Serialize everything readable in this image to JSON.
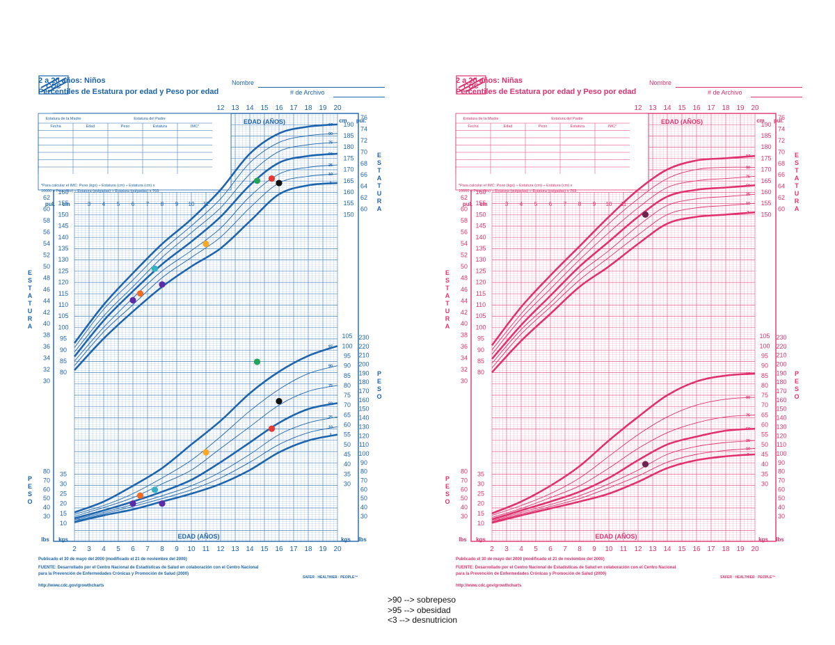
{
  "legend": {
    "lines": [
      ">90 --> sobrepeso",
      ">95 --> obesidad",
      "<3 --> desnutricion"
    ]
  },
  "labels": {
    "edad_anos": "EDAD (AÑOS)",
    "estatura_v": "ESTATURA",
    "peso_v": "PESO",
    "pul": "pul.",
    "cm": "cm",
    "lbs": "lbs",
    "kgs": "kgs",
    "table_madre": "Estatura de la Madre",
    "table_padre": "Estatura del Padre",
    "table_cols": [
      "Fecha",
      "Edad",
      "Peso",
      "Estatura",
      "IMC*"
    ],
    "imc_note_1": "*Para calcular el IMC: Peso (kgs) ÷ Estatura (cm) ÷ Estatura (cm) x",
    "imc_note_2": "10000 o Peso (lbs) ÷ Estatura (pulgadas) ÷ Estatura (pulgadas) x 703",
    "footer_1": "Publicado el 30 de mayo del 2000 (modificado el 21 de noviembre del 2000)",
    "footer_2": "FUENTE: Desarrollado por el Centro Nacional de Estadísticas de Salud en colaboración con el Centro Nacional para la Prevención de Enfermedades Crónicas y Promoción de Salud (2000)",
    "footer_3": "http://www.cdc.gov/growthcharts",
    "logo_text": "SAFER · HEALTHIER · PEOPLE™",
    "logo_mark": "CDC"
  },
  "charts": {
    "boys": {
      "title": "2 a 20 años: Niños",
      "subtitle": "Percentiles de Estatura por edad y Peso por edad",
      "nombre": "Nombre",
      "archivo": "# de Archivo",
      "color": "#1c64ad"
    },
    "girls": {
      "title": "2 a 20 años: Niñas",
      "subtitle": "Percentiles de Estatura por edad y Peso por edad",
      "nombre": "Nombre",
      "archivo": "# de Archivo",
      "color": "#e0316e"
    }
  },
  "chart_data": [
    {
      "type": "line",
      "title": "2 a 20 años: Niños — Percentiles de Estatura por edad y Peso por edad",
      "xlabel": "EDAD (AÑOS)",
      "ylabel": "ESTATURA / PESO",
      "xlim": [
        2,
        20
      ],
      "x_ticks": [
        2,
        3,
        4,
        5,
        6,
        7,
        8,
        9,
        10,
        11,
        12,
        13,
        14,
        15,
        16,
        17,
        18,
        19,
        20
      ],
      "x_ticks_top": [
        12,
        13,
        14,
        15,
        16,
        17,
        18,
        19,
        20
      ],
      "stature_cm_ticks_left": [
        80,
        85,
        90,
        95,
        100,
        105,
        110,
        115,
        120,
        125,
        130,
        135,
        140,
        145,
        150,
        155,
        160
      ],
      "stature_in_ticks_left": [
        30,
        32,
        34,
        36,
        38,
        40,
        42,
        44,
        46,
        48,
        50,
        52,
        54,
        56,
        58,
        60,
        62
      ],
      "stature_cm_ticks_right": [
        150,
        155,
        160,
        165,
        170,
        175,
        180,
        185,
        190
      ],
      "stature_in_ticks_right": [
        60,
        62,
        64,
        66,
        68,
        70,
        72,
        74,
        76
      ],
      "weight_kg_ticks_right": [
        30,
        35,
        40,
        45,
        50,
        55,
        60,
        65,
        70,
        75,
        80,
        85,
        90,
        95,
        100,
        105
      ],
      "weight_lb_ticks_right": [
        30,
        40,
        50,
        60,
        70,
        80,
        90,
        100,
        110,
        120,
        130,
        140,
        150,
        160,
        170,
        180,
        190,
        200,
        210,
        220,
        230
      ],
      "weight_kg_ticks_left": [
        10,
        15,
        20,
        25,
        30,
        35
      ],
      "weight_lb_ticks_left": [
        30,
        40,
        50,
        60,
        70,
        80
      ],
      "x": [
        2,
        4,
        6,
        8,
        10,
        12,
        14,
        16,
        18,
        20
      ],
      "stature_series": [
        {
          "name": "97",
          "values": [
            93,
            110,
            124,
            137,
            148,
            161,
            177,
            186,
            189,
            190
          ]
        },
        {
          "name": "90",
          "values": [
            91,
            108,
            121,
            134,
            145,
            157,
            173,
            182,
            185,
            186
          ]
        },
        {
          "name": "75",
          "values": [
            89,
            105,
            118,
            131,
            142,
            153,
            168,
            178,
            181,
            182
          ]
        },
        {
          "name": "50",
          "values": [
            87,
            103,
            116,
            128,
            138,
            149,
            163,
            173,
            176,
            177
          ]
        },
        {
          "name": "25",
          "values": [
            85,
            100,
            113,
            125,
            134,
            144,
            158,
            168,
            171,
            172
          ]
        },
        {
          "name": "10",
          "values": [
            83,
            98,
            110,
            122,
            131,
            140,
            153,
            164,
            167,
            168
          ]
        },
        {
          "name": "3",
          "values": [
            81,
            95,
            107,
            118,
            127,
            135,
            147,
            159,
            163,
            164
          ]
        }
      ],
      "weight_series": [
        {
          "name": "97",
          "values": [
            15.5,
            21,
            29,
            38,
            50,
            62,
            76,
            87,
            95,
            100
          ]
        },
        {
          "name": "90",
          "values": [
            14.5,
            19,
            25,
            33,
            42,
            54,
            67,
            78,
            86,
            90
          ]
        },
        {
          "name": "75",
          "values": [
            13.5,
            18,
            23,
            30,
            37,
            48,
            59,
            70,
            77,
            80
          ]
        },
        {
          "name": "50",
          "values": [
            12.5,
            16.5,
            21,
            26,
            32,
            41,
            51,
            61,
            68,
            71
          ]
        },
        {
          "name": "25",
          "values": [
            11.8,
            15.5,
            19.5,
            24,
            29,
            36,
            45,
            55,
            61,
            64
          ]
        },
        {
          "name": "10",
          "values": [
            11.2,
            14.8,
            18.5,
            22.5,
            27,
            33,
            41,
            50,
            56,
            59
          ]
        },
        {
          "name": "3",
          "values": [
            10.5,
            14,
            17,
            21,
            25,
            30,
            37,
            46,
            52,
            55
          ]
        }
      ],
      "points": [
        {
          "chart": "stature",
          "age": 6,
          "value": 112,
          "color": "#5b2aa6"
        },
        {
          "chart": "stature",
          "age": 6.5,
          "value": 115,
          "color": "#f26b21"
        },
        {
          "chart": "stature",
          "age": 7.5,
          "value": 126,
          "color": "#35b3c4"
        },
        {
          "chart": "stature",
          "age": 8,
          "value": 119,
          "color": "#5b2aa6"
        },
        {
          "chart": "stature",
          "age": 11,
          "value": 137,
          "color": "#f9a825"
        },
        {
          "chart": "stature",
          "age": 14.5,
          "value": 165,
          "color": "#26a35a"
        },
        {
          "chart": "stature",
          "age": 15.5,
          "value": 166,
          "color": "#e53935"
        },
        {
          "chart": "stature",
          "age": 16,
          "value": 164,
          "color": "#111111"
        },
        {
          "chart": "weight",
          "age": 6,
          "value": 20,
          "color": "#5b2aa6"
        },
        {
          "chart": "weight",
          "age": 6.5,
          "value": 24,
          "color": "#f26b21"
        },
        {
          "chart": "weight",
          "age": 7.5,
          "value": 27,
          "color": "#35b3c4"
        },
        {
          "chart": "weight",
          "age": 8,
          "value": 20,
          "color": "#5b2aa6"
        },
        {
          "chart": "weight",
          "age": 11,
          "value": 46,
          "color": "#f9a825"
        },
        {
          "chart": "weight",
          "age": 14.5,
          "value": 92,
          "color": "#26a35a"
        },
        {
          "chart": "weight",
          "age": 15.5,
          "value": 58,
          "color": "#e53935"
        },
        {
          "chart": "weight",
          "age": 16,
          "value": 72,
          "color": "#111111"
        }
      ]
    },
    {
      "type": "line",
      "title": "2 a 20 años: Niñas — Percentiles de Estatura por edad y Peso por edad",
      "xlabel": "EDAD (AÑOS)",
      "ylabel": "ESTATURA / PESO",
      "xlim": [
        2,
        20
      ],
      "x_ticks": [
        2,
        3,
        4,
        5,
        6,
        7,
        8,
        9,
        10,
        11,
        12,
        13,
        14,
        15,
        16,
        17,
        18,
        19,
        20
      ],
      "x_ticks_top": [
        12,
        13,
        14,
        15,
        16,
        17,
        18,
        19,
        20
      ],
      "stature_cm_ticks_left": [
        80,
        85,
        90,
        95,
        100,
        105,
        110,
        115,
        120,
        125,
        130,
        135,
        140,
        145,
        150,
        155,
        160
      ],
      "stature_in_ticks_left": [
        30,
        32,
        34,
        36,
        38,
        40,
        42,
        44,
        46,
        48,
        50,
        52,
        54,
        56,
        58,
        60,
        62
      ],
      "stature_cm_ticks_right": [
        150,
        155,
        160,
        165,
        170,
        175,
        180,
        185,
        190
      ],
      "stature_in_ticks_right": [
        60,
        62,
        64,
        66,
        68,
        70,
        72,
        74,
        76
      ],
      "weight_kg_ticks_right": [
        30,
        35,
        40,
        45,
        50,
        55,
        60,
        65,
        70,
        75,
        80,
        85,
        90,
        95,
        100,
        105
      ],
      "weight_lb_ticks_right": [
        30,
        40,
        50,
        60,
        70,
        80,
        90,
        100,
        110,
        120,
        130,
        140,
        150,
        160,
        170,
        180,
        190,
        200,
        210,
        220,
        230
      ],
      "weight_kg_ticks_left": [
        10,
        15,
        20,
        25,
        30,
        35
      ],
      "weight_lb_ticks_left": [
        30,
        40,
        50,
        60,
        70,
        80
      ],
      "x": [
        2,
        4,
        6,
        8,
        10,
        12,
        14,
        16,
        18,
        20
      ],
      "stature_series": [
        {
          "name": "97",
          "values": [
            92,
            109,
            123,
            136,
            149,
            161,
            170,
            174,
            175,
            176
          ]
        },
        {
          "name": "90",
          "values": [
            90,
            106,
            120,
            133,
            146,
            157,
            166,
            170,
            171,
            171
          ]
        },
        {
          "name": "75",
          "values": [
            88,
            104,
            117,
            130,
            142,
            153,
            162,
            165,
            166,
            167
          ]
        },
        {
          "name": "50",
          "values": [
            86,
            101,
            114,
            127,
            138,
            149,
            158,
            161,
            162,
            163
          ]
        },
        {
          "name": "25",
          "values": [
            84,
            99,
            111,
            124,
            134,
            145,
            154,
            157,
            158,
            159
          ]
        },
        {
          "name": "10",
          "values": [
            82,
            97,
            109,
            121,
            131,
            141,
            150,
            153,
            154,
            155
          ]
        },
        {
          "name": "3",
          "values": [
            80,
            94,
            106,
            118,
            127,
            137,
            146,
            149,
            150,
            151
          ]
        }
      ],
      "weight_series": [
        {
          "name": "97",
          "values": [
            15,
            21,
            29,
            39,
            52,
            64,
            75,
            82,
            85,
            86
          ]
        },
        {
          "name": "90",
          "values": [
            14,
            19,
            25,
            33,
            44,
            55,
            64,
            70,
            73,
            74
          ]
        },
        {
          "name": "75",
          "values": [
            13,
            17.5,
            23,
            29,
            38,
            48,
            56,
            61,
            64,
            65
          ]
        },
        {
          "name": "50",
          "values": [
            12,
            16.5,
            21,
            26,
            33,
            42,
            50,
            54,
            57,
            58
          ]
        },
        {
          "name": "25",
          "values": [
            11.3,
            15.5,
            19.5,
            24,
            30,
            37,
            45,
            49,
            51,
            52
          ]
        },
        {
          "name": "10",
          "values": [
            10.8,
            14.8,
            18.5,
            22.5,
            28,
            34,
            41,
            45,
            47,
            48
          ]
        },
        {
          "name": "3",
          "values": [
            10.2,
            14,
            17.5,
            21,
            25,
            31,
            38,
            42,
            44,
            45
          ]
        }
      ],
      "points": [
        {
          "chart": "stature",
          "age": 12.5,
          "value": 150,
          "color": "#6b2550"
        },
        {
          "chart": "weight",
          "age": 12.5,
          "value": 40,
          "color": "#6b2550"
        }
      ]
    }
  ]
}
